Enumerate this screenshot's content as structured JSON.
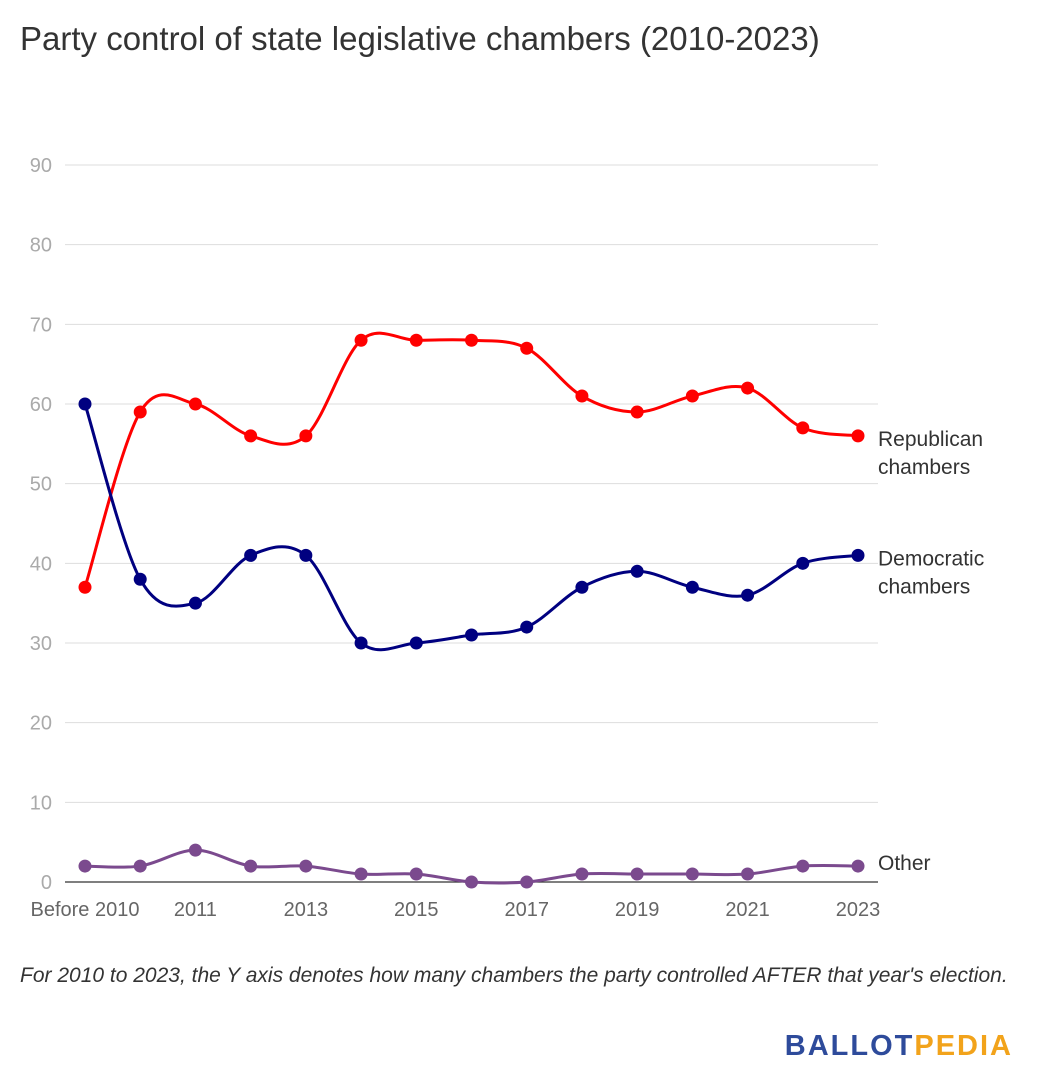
{
  "title": "Party control of state legislative chambers (2010-2023)",
  "note": "For 2010 to 2023, the Y axis denotes how many chambers the party controlled AFTER that year's election.",
  "logo": {
    "part1": "BALLOT",
    "part2": "PEDIA",
    "color1": "#2e4b9b",
    "color2": "#f2a31b"
  },
  "chart_data": {
    "type": "line",
    "x": [
      "Before 2010",
      "2010",
      "2011",
      "2012",
      "2013",
      "2014",
      "2015",
      "2016",
      "2017",
      "2018",
      "2019",
      "2020",
      "2021",
      "2022",
      "2023"
    ],
    "x_tick_labels": [
      "Before 2010",
      "",
      "2011",
      "",
      "2013",
      "",
      "2015",
      "",
      "2017",
      "",
      "2019",
      "",
      "2021",
      "",
      "2023"
    ],
    "ylim": [
      0,
      90
    ],
    "y_ticks": [
      0,
      10,
      20,
      30,
      40,
      50,
      60,
      70,
      80,
      90
    ],
    "grid": true,
    "legend": "end-of-line labels",
    "series": [
      {
        "name": "Republican chambers",
        "label_lines": [
          "Republican",
          "chambers"
        ],
        "color": "#ff0000",
        "values": [
          37,
          59,
          60,
          56,
          56,
          68,
          68,
          68,
          67,
          61,
          59,
          61,
          62,
          57,
          56
        ]
      },
      {
        "name": "Democratic chambers",
        "label_lines": [
          "Democratic",
          "chambers"
        ],
        "color": "#000080",
        "values": [
          60,
          38,
          35,
          41,
          41,
          30,
          30,
          31,
          32,
          37,
          39,
          37,
          36,
          40,
          41
        ]
      },
      {
        "name": "Other",
        "label_lines": [
          "Other"
        ],
        "color": "#7b4a8e",
        "values": [
          2,
          2,
          4,
          2,
          2,
          1,
          1,
          0,
          0,
          1,
          1,
          1,
          1,
          2,
          2
        ]
      }
    ]
  }
}
